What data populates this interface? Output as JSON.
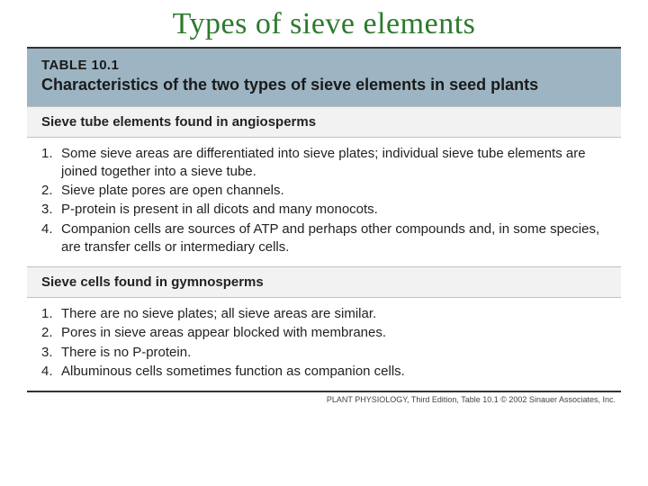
{
  "slide": {
    "title": "Types of sieve elements",
    "title_color": "#2d7a2d",
    "title_fontsize": 34
  },
  "table": {
    "header_bg": "#9db4c2",
    "number": "TABLE 10.1",
    "caption": "Characteristics of the two types of sieve elements in seed plants",
    "sections": [
      {
        "heading": "Sieve tube elements found in angiosperms",
        "items": [
          "Some sieve areas are differentiated into sieve plates; individual sieve tube elements are joined together into a sieve tube.",
          "Sieve plate pores are open channels.",
          "P-protein is present in all dicots and many monocots.",
          "Companion cells are sources of ATP and perhaps other compounds and, in some species, are transfer cells or intermediary cells."
        ]
      },
      {
        "heading": "Sieve cells found in gymnosperms",
        "items": [
          "There are no sieve plates; all sieve areas are similar.",
          "Pores in sieve areas appear blocked with membranes.",
          "There is no P-protein.",
          "Albuminous cells sometimes function as companion cells."
        ]
      }
    ]
  },
  "credit": "PLANT PHYSIOLOGY, Third Edition, Table 10.1  © 2002 Sinauer Associates, Inc."
}
